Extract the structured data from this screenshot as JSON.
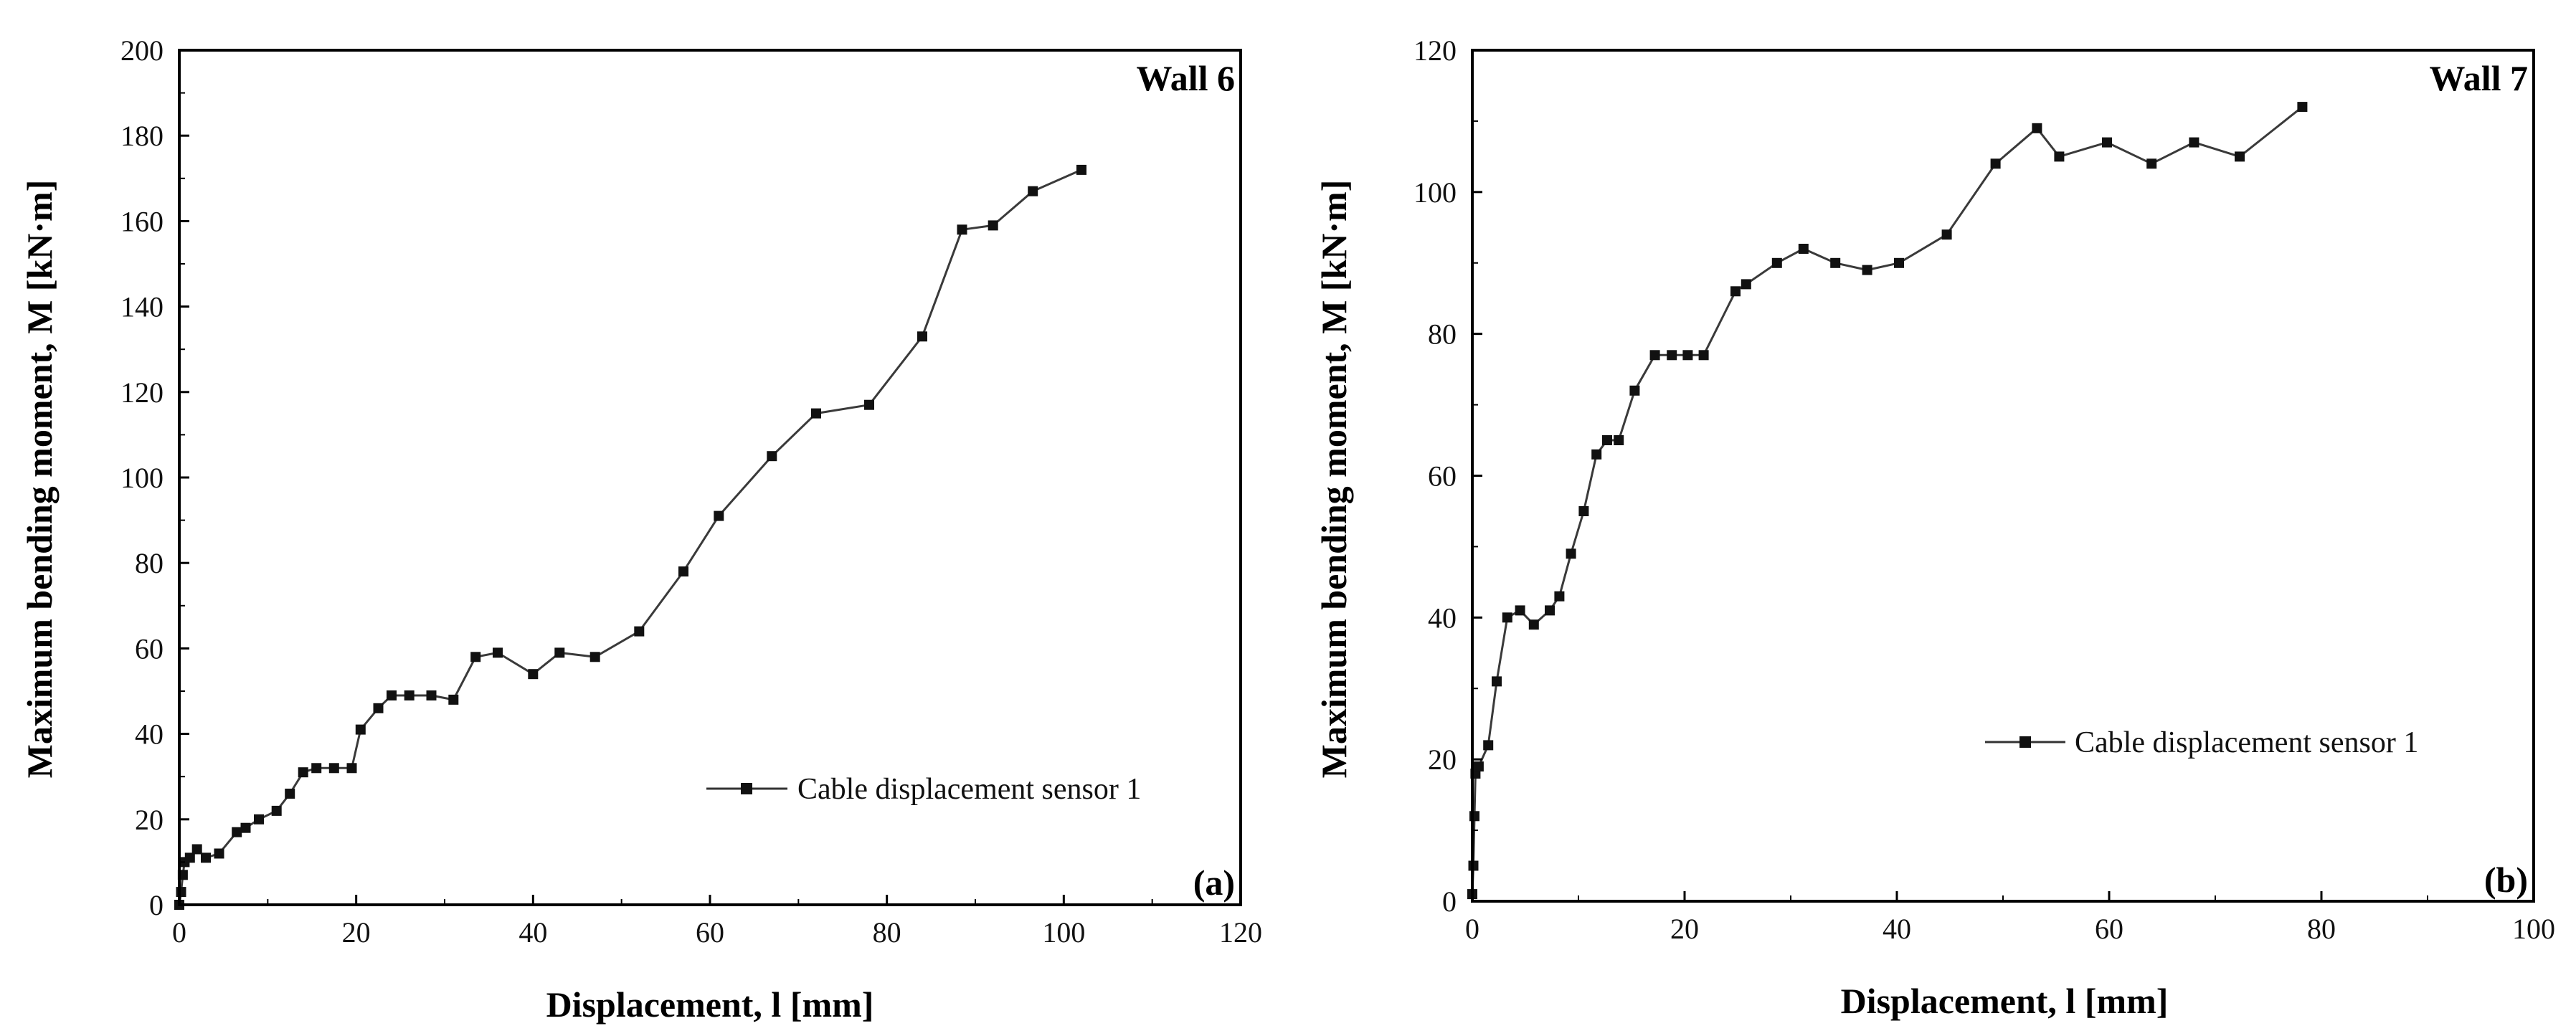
{
  "chart_data": [
    {
      "type": "line",
      "title": "Wall 6",
      "panel_label": "(a)",
      "xlabel": "Displacement, l [mm]",
      "ylabel": "Maximum bending moment, M [kN·m]",
      "xlim": [
        0,
        120
      ],
      "ylim": [
        0,
        200
      ],
      "xticks": [
        0,
        20,
        40,
        60,
        80,
        100,
        120
      ],
      "yticks": [
        0,
        20,
        40,
        60,
        80,
        100,
        120,
        140,
        160,
        180,
        200
      ],
      "legend_position": "lower-right",
      "series": [
        {
          "name": "Cable displacement sensor 1",
          "x": [
            0,
            0.2,
            0.4,
            0.6,
            1.2,
            2,
            3,
            4.5,
            6.5,
            7.5,
            9,
            11,
            12.5,
            14,
            15.5,
            17.5,
            19.5,
            20.5,
            22.5,
            24,
            26,
            28.5,
            31,
            33.5,
            36,
            40,
            43,
            47,
            52,
            57,
            61,
            67,
            72,
            78,
            84,
            88.5,
            92,
            96.5,
            102
          ],
          "y": [
            0,
            3,
            7,
            10,
            11,
            13,
            11,
            12,
            17,
            18,
            20,
            22,
            26,
            31,
            32,
            32,
            32,
            41,
            46,
            49,
            49,
            49,
            48,
            58,
            59,
            54,
            59,
            58,
            64,
            78,
            91,
            105,
            115,
            117,
            133,
            158,
            159,
            167,
            172
          ]
        }
      ]
    },
    {
      "type": "line",
      "title": "Wall 7",
      "panel_label": "(b)",
      "xlabel": "Displacement, l [mm]",
      "ylabel": "Maximum bending moment, M [kN·m]",
      "xlim": [
        0,
        100
      ],
      "ylim": [
        0,
        120
      ],
      "xticks": [
        0,
        20,
        40,
        60,
        80,
        100
      ],
      "yticks": [
        0,
        20,
        40,
        60,
        80,
        100,
        120
      ],
      "legend_position": "lower-right",
      "series": [
        {
          "name": "Cable displacement sensor 1",
          "x": [
            0,
            0.1,
            0.2,
            0.3,
            0.6,
            1.5,
            2.3,
            3.3,
            4.5,
            5.8,
            7.3,
            8.2,
            9.3,
            10.5,
            11.7,
            12.7,
            13.8,
            15.3,
            17.2,
            18.8,
            20.3,
            21.8,
            24.8,
            25.8,
            28.7,
            31.2,
            34.2,
            37.2,
            40.2,
            44.7,
            49.3,
            53.2,
            55.3,
            59.8,
            64,
            68,
            72.3,
            78.2
          ],
          "y": [
            1,
            5,
            12,
            18,
            19,
            22,
            31,
            40,
            41,
            39,
            41,
            43,
            49,
            55,
            63,
            65,
            65,
            72,
            77,
            77,
            77,
            77,
            86,
            87,
            90,
            92,
            90,
            89,
            90,
            94,
            104,
            109,
            105,
            107,
            104,
            107,
            105,
            112
          ]
        }
      ]
    }
  ]
}
